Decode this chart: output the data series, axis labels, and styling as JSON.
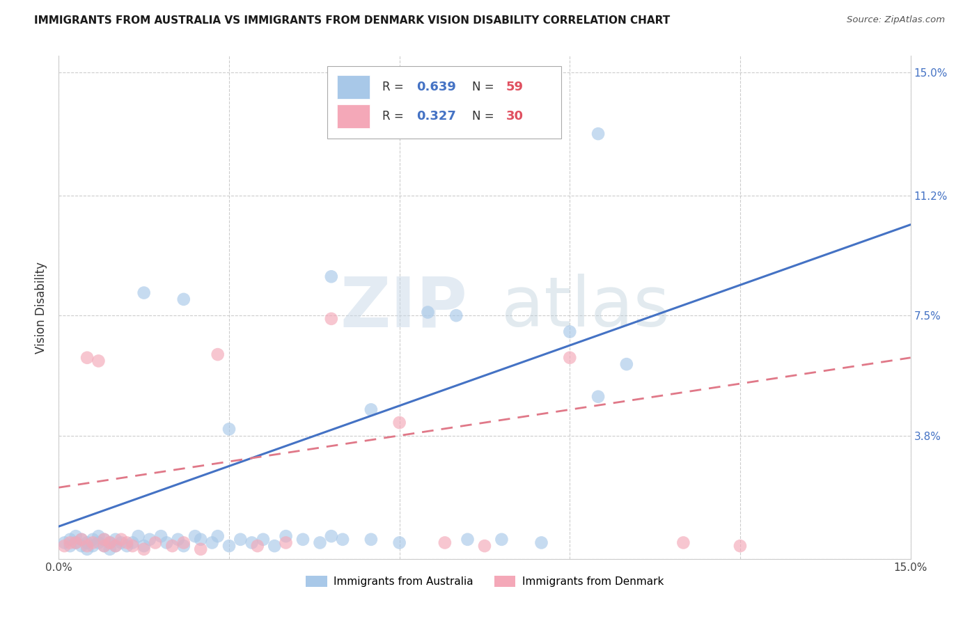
{
  "title": "IMMIGRANTS FROM AUSTRALIA VS IMMIGRANTS FROM DENMARK VISION DISABILITY CORRELATION CHART",
  "source": "Source: ZipAtlas.com",
  "ylabel": "Vision Disability",
  "xlim": [
    0.0,
    0.15
  ],
  "ylim": [
    0.0,
    0.15
  ],
  "australia_R": 0.639,
  "australia_N": 59,
  "denmark_R": 0.327,
  "denmark_N": 30,
  "australia_color": "#a8c8e8",
  "denmark_color": "#f4a8b8",
  "australia_line_color": "#4472c4",
  "denmark_line_color": "#e07888",
  "watermark_zip": "ZIP",
  "watermark_atlas": "atlas",
  "grid_color": "#cccccc",
  "right_label_color": "#4472c4",
  "aus_x": [
    0.001,
    0.002,
    0.002,
    0.003,
    0.003,
    0.004,
    0.004,
    0.005,
    0.005,
    0.006,
    0.006,
    0.007,
    0.007,
    0.008,
    0.008,
    0.009,
    0.009,
    0.01,
    0.01,
    0.011,
    0.012,
    0.013,
    0.014,
    0.015,
    0.016,
    0.018,
    0.019,
    0.021,
    0.022,
    0.024,
    0.025,
    0.027,
    0.028,
    0.03,
    0.032,
    0.034,
    0.036,
    0.038,
    0.04,
    0.043,
    0.046,
    0.048,
    0.05,
    0.055,
    0.06,
    0.065,
    0.072,
    0.078,
    0.085,
    0.09,
    0.095,
    0.1,
    0.095,
    0.048,
    0.03,
    0.055,
    0.07,
    0.015,
    0.022
  ],
  "aus_y": [
    0.005,
    0.004,
    0.006,
    0.005,
    0.007,
    0.004,
    0.006,
    0.003,
    0.005,
    0.004,
    0.006,
    0.005,
    0.007,
    0.004,
    0.006,
    0.005,
    0.003,
    0.006,
    0.004,
    0.005,
    0.004,
    0.005,
    0.007,
    0.004,
    0.006,
    0.007,
    0.005,
    0.006,
    0.004,
    0.007,
    0.006,
    0.005,
    0.007,
    0.004,
    0.006,
    0.005,
    0.006,
    0.004,
    0.007,
    0.006,
    0.005,
    0.007,
    0.006,
    0.006,
    0.005,
    0.076,
    0.006,
    0.006,
    0.005,
    0.07,
    0.05,
    0.06,
    0.131,
    0.087,
    0.04,
    0.046,
    0.075,
    0.082,
    0.08
  ],
  "den_x": [
    0.001,
    0.002,
    0.003,
    0.004,
    0.005,
    0.005,
    0.006,
    0.007,
    0.008,
    0.008,
    0.009,
    0.01,
    0.011,
    0.012,
    0.013,
    0.015,
    0.017,
    0.02,
    0.022,
    0.025,
    0.028,
    0.035,
    0.04,
    0.048,
    0.06,
    0.068,
    0.075,
    0.09,
    0.11,
    0.12
  ],
  "den_y": [
    0.004,
    0.005,
    0.005,
    0.006,
    0.004,
    0.062,
    0.005,
    0.061,
    0.004,
    0.006,
    0.005,
    0.004,
    0.006,
    0.005,
    0.004,
    0.003,
    0.005,
    0.004,
    0.005,
    0.003,
    0.063,
    0.004,
    0.005,
    0.074,
    0.042,
    0.005,
    0.004,
    0.062,
    0.005,
    0.004
  ]
}
